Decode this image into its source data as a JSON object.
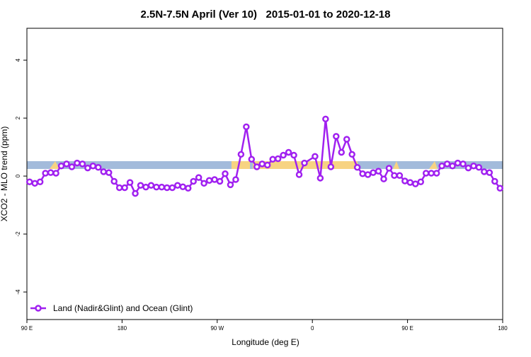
{
  "chart_data": {
    "type": "line",
    "title": "2.5N-7.5N April (Ver 10)   2015-01-01 to 2020-12-18",
    "x_label": "Longitude (deg E)",
    "y_label": "XCO2 - MLO trend (ppm)",
    "xlim": [
      90,
      540
    ],
    "ylim": [
      -4.95,
      5.1
    ],
    "xticks": [
      {
        "value": 90,
        "label": "90 E"
      },
      180,
      {
        "value": 270,
        "label": "90 W"
      },
      {
        "value": 360,
        "label": "0"
      },
      {
        "value": 450,
        "label": "90 E"
      },
      {
        "value": 540,
        "label": "180"
      }
    ],
    "yticks": [
      4,
      2,
      0,
      -2,
      -4
    ],
    "legend": "bottom-left",
    "x": [
      92.5,
      97.5,
      102.5,
      107.5,
      112.5,
      117.5,
      122.5,
      127.5,
      132.5,
      137.5,
      142.5,
      147.5,
      152.5,
      157.5,
      162.5,
      167.5,
      172.5,
      177.5,
      182.5,
      187.5,
      192.5,
      197.5,
      202.5,
      207.5,
      212.5,
      217.5,
      222.5,
      227.5,
      232.5,
      237.5,
      242.5,
      247.5,
      252.5,
      257.5,
      262.5,
      267.5,
      272.5,
      277.5,
      282.5,
      287.5,
      292.5,
      297.5,
      302.5,
      307.5,
      312.5,
      317.5,
      322.5,
      327.5,
      332.5,
      337.5,
      342.5,
      347.5,
      352.5,
      362.5,
      367.5,
      372.5,
      377.5,
      382.5,
      387.5,
      392.5,
      397.5,
      402.5,
      407.5,
      412.5,
      417.5,
      422.5,
      427.5,
      432.5,
      437.5,
      442.5,
      447.5,
      452.5,
      457.5,
      462.5,
      467.5,
      472.5,
      477.5,
      482.5,
      487.5,
      492.5,
      497.5,
      502.5,
      507.5,
      512.5,
      517.5,
      522.5,
      527.5,
      532.5,
      537.5
    ],
    "series": [
      {
        "name": "Land (Nadir&Glint) and Ocean (Glint)",
        "color": "#a020f0",
        "values": [
          -0.2,
          -0.25,
          -0.2,
          0.1,
          0.12,
          0.1,
          0.35,
          0.42,
          0.32,
          0.45,
          0.42,
          0.28,
          0.35,
          0.3,
          0.15,
          0.12,
          -0.18,
          -0.4,
          -0.4,
          -0.22,
          -0.6,
          -0.32,
          -0.38,
          -0.32,
          -0.38,
          -0.38,
          -0.4,
          -0.4,
          -0.32,
          -0.37,
          -0.42,
          -0.18,
          -0.05,
          -0.25,
          -0.15,
          -0.12,
          -0.18,
          0.08,
          -0.3,
          -0.12,
          0.75,
          1.7,
          0.58,
          0.32,
          0.42,
          0.38,
          0.58,
          0.6,
          0.72,
          0.82,
          0.72,
          0.05,
          0.45,
          0.68,
          -0.07,
          1.97,
          0.32,
          1.37,
          0.82,
          1.27,
          0.75,
          0.3,
          0.08,
          0.05,
          0.12,
          0.17,
          -0.1,
          0.27,
          0.02,
          0.02,
          -0.17,
          -0.22,
          -0.27,
          -0.2,
          0.1,
          0.1,
          0.1,
          0.35,
          0.42,
          0.35,
          0.45,
          0.42,
          0.28,
          0.35,
          0.3,
          0.15,
          0.12,
          -0.18,
          -0.42
        ]
      }
    ]
  }
}
